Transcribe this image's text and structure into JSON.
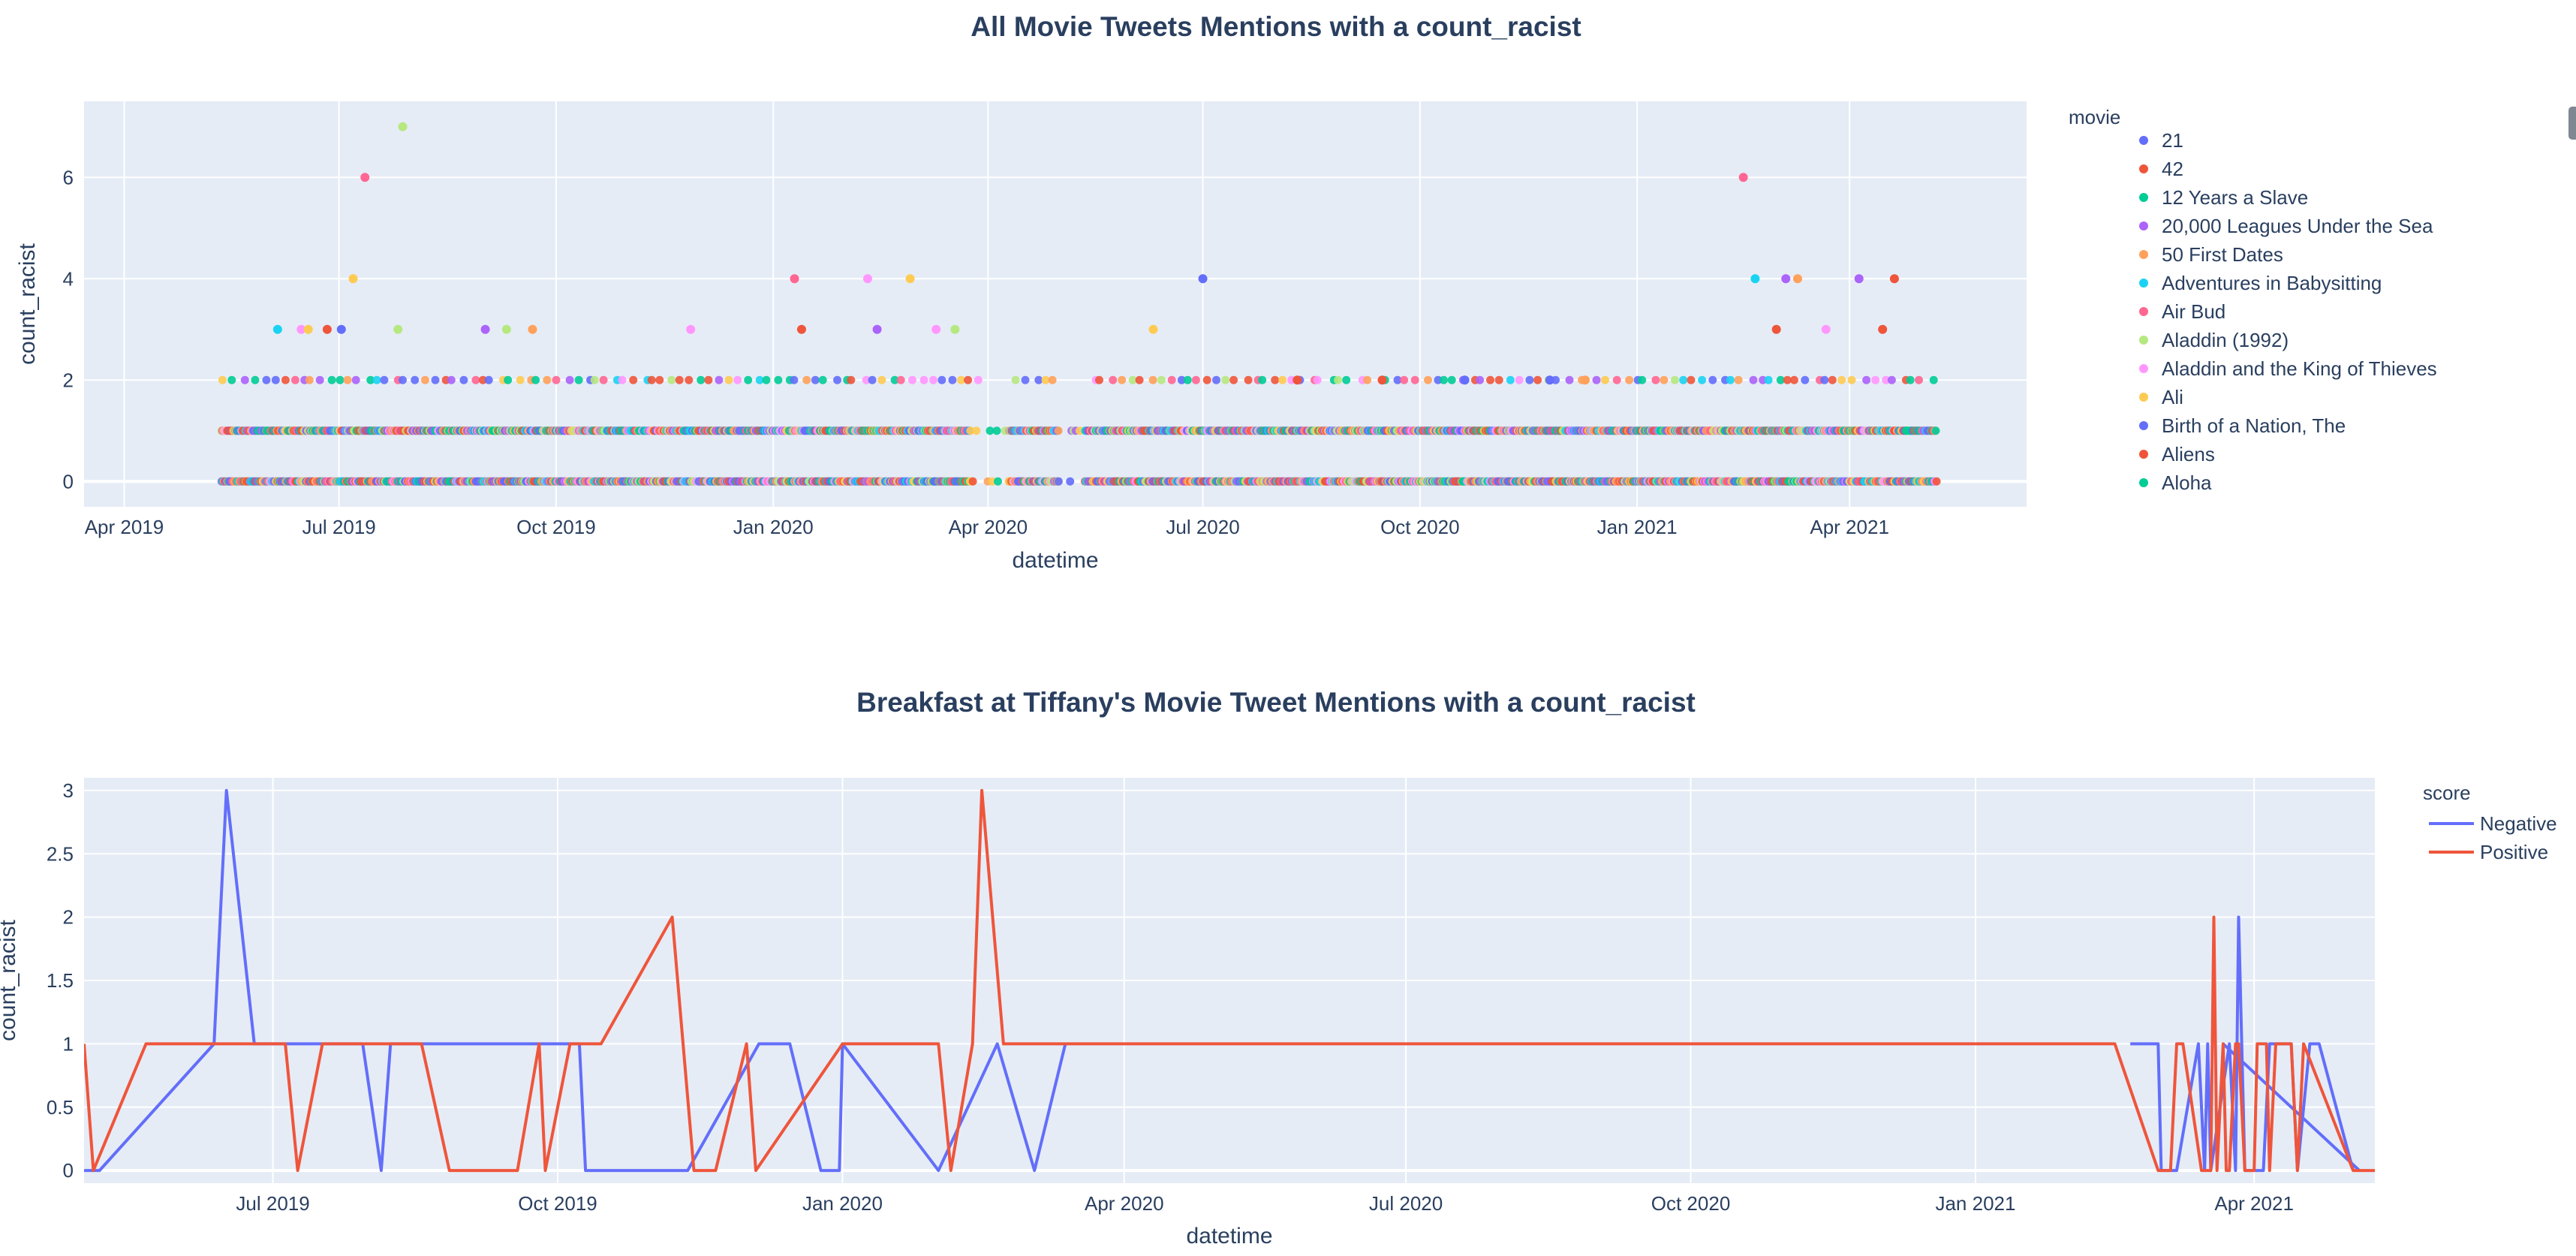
{
  "chart_data": [
    {
      "type": "scatter",
      "title": "All Movie Tweets Mentions with a count_racist",
      "xlabel": "datetime",
      "ylabel": "count_racist",
      "legend_title": "movie",
      "legend_position": "right",
      "grid": true,
      "xlim": [
        "2019-03-15",
        "2021-06-15"
      ],
      "ylim": [
        -0.5,
        7.5
      ],
      "x_ticks": [
        {
          "date": "2019-04-01",
          "label": "Apr 2019"
        },
        {
          "date": "2019-07-01",
          "label": "Jul 2019"
        },
        {
          "date": "2019-10-01",
          "label": "Oct 2019"
        },
        {
          "date": "2020-01-01",
          "label": "Jan 2020"
        },
        {
          "date": "2020-04-01",
          "label": "Apr 2020"
        },
        {
          "date": "2020-07-01",
          "label": "Jul 2020"
        },
        {
          "date": "2020-10-01",
          "label": "Oct 2020"
        },
        {
          "date": "2021-01-01",
          "label": "Jan 2021"
        },
        {
          "date": "2021-04-01",
          "label": "Apr 2021"
        }
      ],
      "y_ticks": [
        0,
        2,
        4,
        6
      ],
      "series": [
        {
          "name": "21",
          "color": "#636efa"
        },
        {
          "name": "42",
          "color": "#EF553B"
        },
        {
          "name": "12 Years a Slave",
          "color": "#00cc96"
        },
        {
          "name": "20,000 Leagues Under the Sea",
          "color": "#ab63fa"
        },
        {
          "name": "50 First Dates",
          "color": "#FFA15A"
        },
        {
          "name": "Adventures in Babysitting",
          "color": "#19d3f3"
        },
        {
          "name": "Air Bud",
          "color": "#FF6692"
        },
        {
          "name": "Aladdin (1992)",
          "color": "#B6E880"
        },
        {
          "name": "Aladdin and the King of Thieves",
          "color": "#FF97FF"
        },
        {
          "name": "Ali",
          "color": "#FECB52"
        },
        {
          "name": "Birth of a Nation, The",
          "color": "#636efa"
        },
        {
          "name": "Aliens",
          "color": "#EF553B"
        },
        {
          "name": "Aloha",
          "color": "#00cc96"
        }
      ],
      "points": [
        {
          "x": "2019-07-12",
          "y": 6,
          "series": "Air Bud"
        },
        {
          "x": "2019-07-28",
          "y": 7,
          "series": "Aladdin (1992)"
        },
        {
          "x": "2019-07-07",
          "y": 4,
          "series": "Ali"
        },
        {
          "x": "2019-06-05",
          "y": 3,
          "series": "Adventures in Babysitting"
        },
        {
          "x": "2019-06-15",
          "y": 3,
          "series": "Aladdin and the King of Thieves"
        },
        {
          "x": "2019-06-18",
          "y": 3,
          "series": "Ali"
        },
        {
          "x": "2019-06-26",
          "y": 3,
          "series": "42"
        },
        {
          "x": "2019-07-02",
          "y": 3,
          "series": "21"
        },
        {
          "x": "2019-07-26",
          "y": 3,
          "series": "Aladdin (1992)"
        },
        {
          "x": "2019-09-01",
          "y": 3,
          "series": "20,000 Leagues Under the Sea"
        },
        {
          "x": "2019-09-10",
          "y": 3,
          "series": "Aladdin (1992)"
        },
        {
          "x": "2019-09-21",
          "y": 3,
          "series": "50 First Dates"
        },
        {
          "x": "2019-11-27",
          "y": 3,
          "series": "Aladdin and the King of Thieves"
        },
        {
          "x": "2020-01-10",
          "y": 4,
          "series": "Air Bud"
        },
        {
          "x": "2020-01-13",
          "y": 3,
          "series": "42"
        },
        {
          "x": "2020-02-10",
          "y": 4,
          "series": "Aladdin and the King of Thieves"
        },
        {
          "x": "2020-02-14",
          "y": 3,
          "series": "20,000 Leagues Under the Sea"
        },
        {
          "x": "2020-02-28",
          "y": 4,
          "series": "Ali"
        },
        {
          "x": "2020-03-10",
          "y": 3,
          "series": "Aladdin and the King of Thieves"
        },
        {
          "x": "2020-03-18",
          "y": 3,
          "series": "Aladdin (1992)"
        },
        {
          "x": "2020-06-10",
          "y": 3,
          "series": "Ali"
        },
        {
          "x": "2020-07-01",
          "y": 4,
          "series": "21"
        },
        {
          "x": "2021-02-15",
          "y": 6,
          "series": "Air Bud"
        },
        {
          "x": "2021-02-20",
          "y": 4,
          "series": "Adventures in Babysitting"
        },
        {
          "x": "2021-03-05",
          "y": 4,
          "series": "20,000 Leagues Under the Sea"
        },
        {
          "x": "2021-03-10",
          "y": 4,
          "series": "50 First Dates"
        },
        {
          "x": "2021-03-01",
          "y": 3,
          "series": "Aliens"
        },
        {
          "x": "2021-03-22",
          "y": 3,
          "series": "Aladdin and the King of Thieves"
        },
        {
          "x": "2021-04-05",
          "y": 4,
          "series": "20,000 Leagues Under the Sea"
        },
        {
          "x": "2021-04-15",
          "y": 3,
          "series": "42"
        },
        {
          "x": "2021-04-20",
          "y": 4,
          "series": "42"
        },
        {
          "x": "2020-08-10",
          "y": 2,
          "series": "Aliens"
        },
        {
          "x": "2020-09-15",
          "y": 2,
          "series": "42"
        },
        {
          "x": "2020-10-20",
          "y": 2,
          "series": "Birth of a Nation, The"
        },
        {
          "x": "2020-11-25",
          "y": 2,
          "series": "21"
        },
        {
          "x": "2020-12-10",
          "y": 2,
          "series": "50 First Dates"
        }
      ],
      "dense_band_note": "Most mentions at count_racist 0, 1 and 2 across May 2019 – May 2021"
    },
    {
      "type": "line",
      "title": "Breakfast at Tiffany's Movie Tweet Mentions with a count_racist",
      "xlabel": "datetime",
      "ylabel": "count_racist",
      "legend_title": "score",
      "legend_position": "right",
      "grid": true,
      "xlim": [
        "2019-05-01",
        "2021-05-10"
      ],
      "ylim": [
        -0.1,
        3.1
      ],
      "x_ticks": [
        {
          "date": "2019-07-01",
          "label": "Jul 2019"
        },
        {
          "date": "2019-10-01",
          "label": "Oct 2019"
        },
        {
          "date": "2020-01-01",
          "label": "Jan 2020"
        },
        {
          "date": "2020-04-01",
          "label": "Apr 2020"
        },
        {
          "date": "2020-07-01",
          "label": "Jul 2020"
        },
        {
          "date": "2020-10-01",
          "label": "Oct 2020"
        },
        {
          "date": "2021-01-01",
          "label": "Jan 2021"
        },
        {
          "date": "2021-04-01",
          "label": "Apr 2021"
        }
      ],
      "y_ticks": [
        {
          "value": 0,
          "label": "0"
        },
        {
          "value": 0.5,
          "label": "0.5"
        },
        {
          "value": 1,
          "label": "1"
        },
        {
          "value": 1.5,
          "label": "1.5"
        },
        {
          "value": 2,
          "label": "2"
        },
        {
          "value": 2.5,
          "label": "2.5"
        },
        {
          "value": 3,
          "label": "3"
        }
      ],
      "series": [
        {
          "name": "Negative",
          "color": "#636efa",
          "points": [
            [
              "2019-05-01",
              0
            ],
            [
              "2019-05-06",
              0
            ],
            [
              "2019-06-12",
              1
            ],
            [
              "2019-06-16",
              3
            ],
            [
              "2019-06-25",
              1
            ],
            [
              "2019-07-05",
              1
            ],
            [
              "2019-07-14",
              1
            ],
            [
              "2019-07-30",
              1
            ],
            [
              "2019-08-05",
              0
            ],
            [
              "2019-08-08",
              1
            ],
            [
              "2019-09-28",
              1
            ],
            [
              "2019-10-08",
              1
            ],
            [
              "2019-10-10",
              0
            ],
            [
              "2019-11-12",
              0
            ],
            [
              "2019-12-05",
              1
            ],
            [
              "2019-12-15",
              1
            ],
            [
              "2019-12-25",
              0
            ],
            [
              "2019-12-31",
              0
            ],
            [
              "2020-01-01",
              1
            ],
            [
              "2020-02-01",
              0
            ],
            [
              "2020-02-20",
              1
            ],
            [
              "2020-03-03",
              0
            ],
            [
              "2020-03-13",
              1
            ]
          ],
          "points_2": [
            [
              "2021-02-20",
              1
            ],
            [
              "2021-03-01",
              1
            ],
            [
              "2021-03-02",
              0
            ],
            [
              "2021-03-07",
              0
            ],
            [
              "2021-03-14",
              1
            ],
            [
              "2021-03-16",
              0
            ],
            [
              "2021-03-17",
              1
            ],
            [
              "2021-03-18",
              0
            ],
            [
              "2021-03-24",
              1
            ],
            [
              "2021-03-26",
              0
            ],
            [
              "2021-03-27",
              2
            ],
            [
              "2021-03-29",
              0
            ],
            [
              "2021-04-04",
              0
            ],
            [
              "2021-04-06",
              1
            ],
            [
              "2021-04-13",
              1
            ],
            [
              "2021-04-15",
              0
            ],
            [
              "2021-04-19",
              1
            ],
            [
              "2021-04-22",
              1
            ],
            [
              "2021-05-03",
              0
            ]
          ],
          "points_3": [
            [
              "2021-03-22",
              1
            ],
            [
              "2021-05-05",
              0
            ]
          ]
        },
        {
          "name": "Positive",
          "color": "#EF553B",
          "points": [
            [
              "2019-05-01",
              1
            ],
            [
              "2019-05-04",
              0
            ],
            [
              "2019-05-21",
              1
            ],
            [
              "2019-07-05",
              1
            ],
            [
              "2019-07-09",
              0
            ],
            [
              "2019-07-17",
              1
            ],
            [
              "2019-08-18",
              1
            ],
            [
              "2019-08-27",
              0
            ],
            [
              "2019-09-18",
              0
            ],
            [
              "2019-09-25",
              1
            ],
            [
              "2019-09-27",
              0
            ],
            [
              "2019-10-05",
              1
            ],
            [
              "2019-10-15",
              1
            ],
            [
              "2019-11-07",
              2
            ],
            [
              "2019-11-14",
              0
            ],
            [
              "2019-11-21",
              0
            ],
            [
              "2019-12-01",
              1
            ],
            [
              "2019-12-04",
              0
            ],
            [
              "2020-01-01",
              1
            ],
            [
              "2020-02-01",
              1
            ],
            [
              "2020-02-05",
              0
            ],
            [
              "2020-02-12",
              1
            ],
            [
              "2020-02-15",
              3
            ],
            [
              "2020-02-22",
              1
            ],
            [
              "2021-02-15",
              1
            ],
            [
              "2021-03-01",
              0
            ],
            [
              "2021-03-05",
              0
            ],
            [
              "2021-03-07",
              1
            ],
            [
              "2021-03-09",
              1
            ],
            [
              "2021-03-15",
              0
            ],
            [
              "2021-03-18",
              0
            ],
            [
              "2021-03-19",
              2
            ],
            [
              "2021-03-20",
              0
            ],
            [
              "2021-03-22",
              1
            ],
            [
              "2021-03-23",
              0
            ],
            [
              "2021-03-24",
              0
            ],
            [
              "2021-03-26",
              1
            ],
            [
              "2021-03-27",
              1
            ],
            [
              "2021-03-29",
              0
            ],
            [
              "2021-04-01",
              0
            ],
            [
              "2021-04-02",
              1
            ],
            [
              "2021-04-05",
              1
            ],
            [
              "2021-04-06",
              0
            ],
            [
              "2021-04-08",
              1
            ],
            [
              "2021-04-13",
              1
            ],
            [
              "2021-04-15",
              0
            ],
            [
              "2021-04-17",
              1
            ],
            [
              "2021-05-03",
              0
            ],
            [
              "2021-05-10",
              0
            ]
          ]
        }
      ]
    }
  ]
}
